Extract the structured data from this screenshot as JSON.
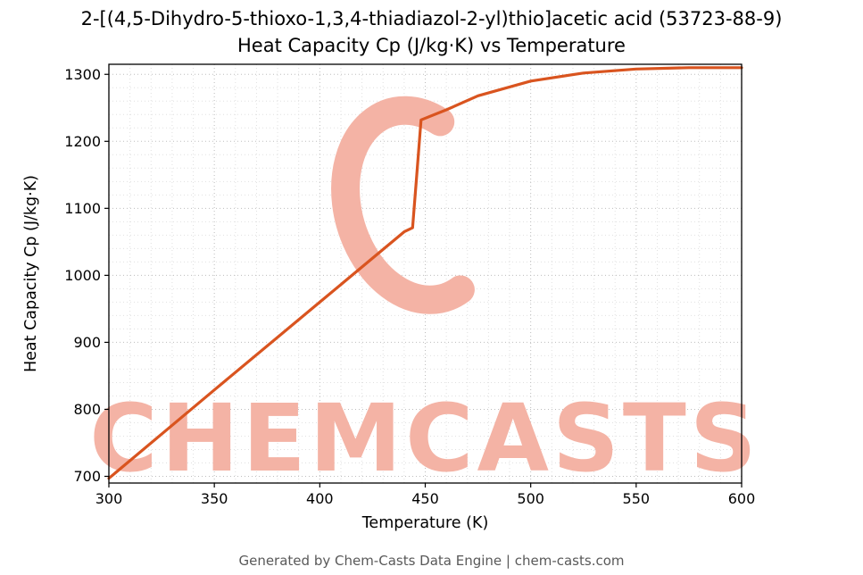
{
  "title": {
    "line1": "2-[(4,5-Dihydro-5-thioxo-1,3,4-thiadiazol-2-yl)thio]acetic acid (53723-88-9)",
    "line2": "Heat Capacity Cp (J/kg·K) vs Temperature"
  },
  "watermark": {
    "text": "CHEMCASTS"
  },
  "footer": "Generated by Chem-Casts Data Engine | chem-casts.com",
  "colors": {
    "line": "#d9541f",
    "watermark": "#f4b3a5",
    "grid_major": "#bdbdbd",
    "grid_minor": "#e0e0e0",
    "spine": "#000000",
    "footer_text": "#595959"
  },
  "chart_data": {
    "type": "line",
    "title": "2-[(4,5-Dihydro-5-thioxo-1,3,4-thiadiazol-2-yl)thio]acetic acid (53723-88-9) Heat Capacity Cp (J/kg·K) vs Temperature",
    "xlabel": "Temperature (K)",
    "ylabel": "Heat Capacity Cp (J/kg·K)",
    "xlim": [
      300,
      600
    ],
    "ylim": [
      690,
      1315
    ],
    "xticks": [
      300,
      350,
      400,
      450,
      500,
      550,
      600
    ],
    "yticks": [
      700,
      800,
      900,
      1000,
      1100,
      1200,
      1300
    ],
    "x_minor_step": 10,
    "y_minor_step": 20,
    "grid": true,
    "legend": "none",
    "series": [
      {
        "name": "Heat Capacity Cp",
        "x": [
          300,
          350,
          400,
          440,
          444,
          446,
          448,
          460,
          475,
          500,
          525,
          550,
          575,
          600
        ],
        "y": [
          697,
          829,
          960,
          1065,
          1071,
          1150,
          1232,
          1247,
          1268,
          1290,
          1302,
          1308,
          1310,
          1310
        ]
      }
    ]
  }
}
